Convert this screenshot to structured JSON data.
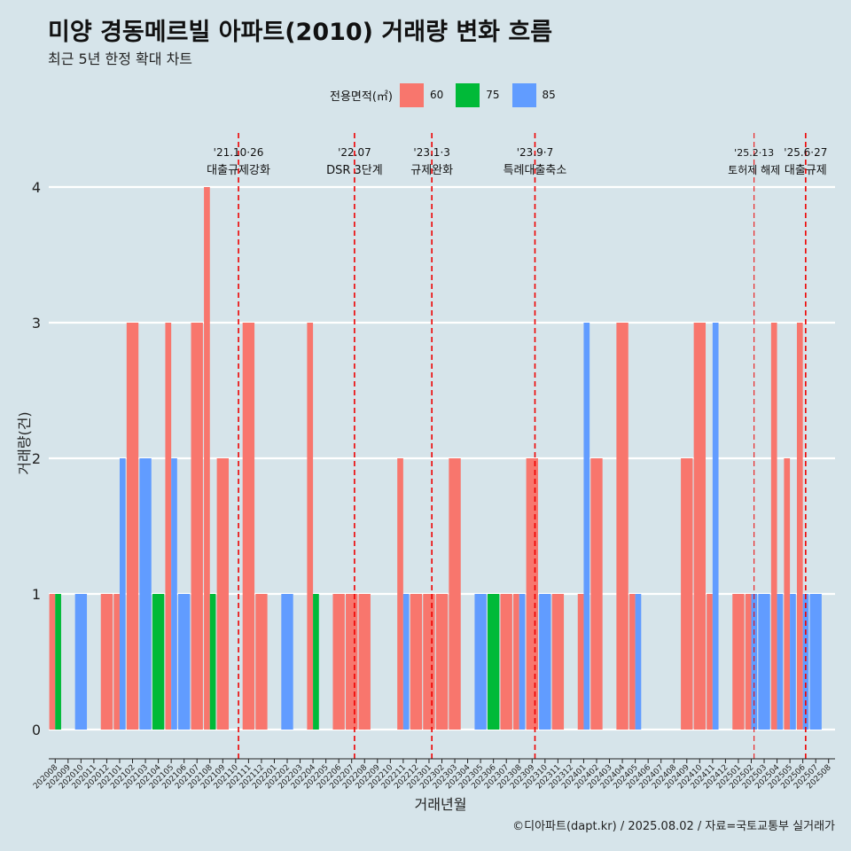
{
  "title": "미양 경동메르빌 아파트(2010) 거래량 변화 흐름",
  "subtitle": "최근 5년 한정 확대 차트",
  "caption": "©디아파트(dapt.kr) / 2025.08.02 / 자료=국토교통부 실거래가",
  "legend": {
    "title": "전용면적(㎡)",
    "items": [
      {
        "label": "60",
        "color": "#f8766d"
      },
      {
        "label": "75",
        "color": "#00ba38"
      },
      {
        "label": "85",
        "color": "#619cff"
      }
    ]
  },
  "chart_data": {
    "type": "bar",
    "xlabel": "거래년월",
    "ylabel": "거래량(건)",
    "ylim": [
      0,
      4
    ],
    "yticks": [
      0,
      1,
      2,
      3,
      4
    ],
    "grid": "horizontal",
    "legend_position": "top",
    "categories": [
      "202008",
      "202009",
      "202010",
      "202011",
      "202012",
      "202101",
      "202102",
      "202103",
      "202104",
      "202105",
      "202106",
      "202107",
      "202108",
      "202109",
      "202110",
      "202111",
      "202112",
      "202201",
      "202202",
      "202203",
      "202204",
      "202205",
      "202206",
      "202207",
      "202208",
      "202209",
      "202210",
      "202211",
      "202212",
      "202301",
      "202302",
      "202303",
      "202304",
      "202305",
      "202306",
      "202307",
      "202308",
      "202309",
      "202310",
      "202311",
      "202312",
      "202401",
      "202402",
      "202403",
      "202404",
      "202405",
      "202406",
      "202407",
      "202408",
      "202409",
      "202410",
      "202411",
      "202412",
      "202501",
      "202502",
      "202503",
      "202504",
      "202505",
      "202506",
      "202507",
      "202508"
    ],
    "series": [
      {
        "name": "60",
        "color": "#f8766d",
        "values": [
          1,
          0,
          0,
          0,
          1,
          1,
          3,
          0,
          0,
          3,
          0,
          3,
          4,
          2,
          0,
          3,
          1,
          0,
          0,
          0,
          3,
          0,
          1,
          1,
          1,
          0,
          0,
          2,
          1,
          1,
          1,
          2,
          0,
          0,
          0,
          1,
          1,
          2,
          0,
          1,
          0,
          1,
          2,
          0,
          3,
          1,
          0,
          0,
          0,
          2,
          3,
          1,
          0,
          1,
          1,
          0,
          3,
          2,
          3,
          0,
          0
        ]
      },
      {
        "name": "75",
        "color": "#00ba38",
        "values": [
          1,
          0,
          0,
          0,
          0,
          0,
          0,
          0,
          1,
          0,
          0,
          0,
          1,
          0,
          0,
          0,
          0,
          0,
          0,
          0,
          1,
          0,
          0,
          0,
          0,
          0,
          0,
          0,
          0,
          0,
          0,
          0,
          0,
          0,
          1,
          0,
          0,
          0,
          0,
          0,
          0,
          0,
          0,
          0,
          0,
          0,
          0,
          0,
          0,
          0,
          0,
          0,
          0,
          0,
          0,
          0,
          0,
          0,
          0,
          0,
          0
        ]
      },
      {
        "name": "85",
        "color": "#619cff",
        "values": [
          0,
          0,
          1,
          0,
          0,
          2,
          0,
          2,
          0,
          2,
          1,
          0,
          0,
          0,
          0,
          0,
          0,
          0,
          1,
          0,
          0,
          0,
          0,
          0,
          0,
          0,
          0,
          1,
          0,
          0,
          0,
          0,
          0,
          1,
          0,
          0,
          1,
          0,
          1,
          0,
          0,
          3,
          0,
          0,
          0,
          1,
          0,
          0,
          0,
          0,
          0,
          3,
          0,
          0,
          1,
          1,
          1,
          1,
          1,
          1,
          0
        ]
      }
    ],
    "annotations": [
      {
        "category": "202110",
        "date": "'21.10·26",
        "label": "대출규제강화"
      },
      {
        "category": "202207",
        "date": "'22.07",
        "label": "DSR 3단계"
      },
      {
        "category": "202301",
        "date": "'23.1·3",
        "label": "규제완화"
      },
      {
        "category": "202309",
        "date": "'23.9·7",
        "label": "특례대출축소"
      },
      {
        "category": "202502",
        "date": "'25.2·13",
        "label": "토허제 해제"
      },
      {
        "category": "202506",
        "date": "'25.6·27",
        "label": "대출규제"
      }
    ]
  }
}
